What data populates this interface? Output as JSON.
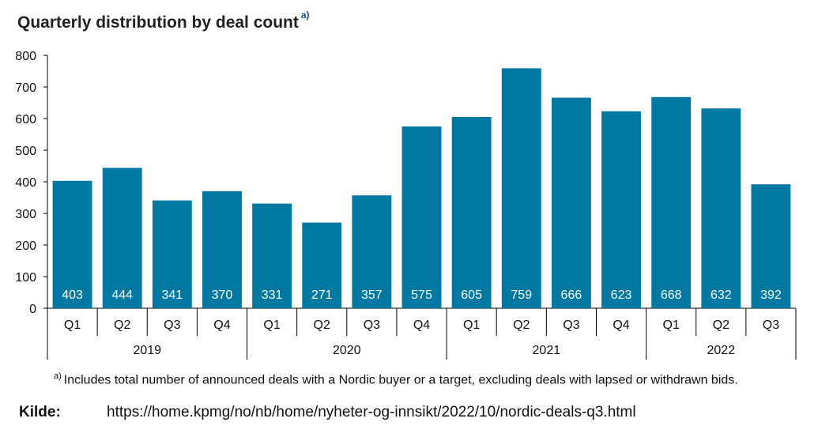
{
  "title": "Quarterly distribution by deal count",
  "title_note": "a)",
  "footnote_marker": "a)",
  "footnote_text": "Includes total number of announced deals with a Nordic buyer or a target, excluding deals with lapsed or withdrawn bids.",
  "source_label": "Kilde:",
  "source_url": "https://home.kpmg/no/nb/home/nyheter-og-innsikt/2022/10/nordic-deals-q3.html",
  "colors": {
    "bar": "#0079a2",
    "bar_label": "#ffffff",
    "axis": "#000000"
  },
  "chart_data": {
    "type": "bar",
    "title": "Quarterly distribution by deal count",
    "categories": [
      "Q1",
      "Q2",
      "Q3",
      "Q4",
      "Q1",
      "Q2",
      "Q3",
      "Q4",
      "Q1",
      "Q2",
      "Q3",
      "Q4",
      "Q1",
      "Q2",
      "Q3"
    ],
    "groups": [
      {
        "label": "2019",
        "count": 4
      },
      {
        "label": "2020",
        "count": 4
      },
      {
        "label": "2021",
        "count": 4
      },
      {
        "label": "2022",
        "count": 3
      }
    ],
    "values": [
      403,
      444,
      341,
      370,
      331,
      271,
      357,
      575,
      605,
      759,
      666,
      623,
      668,
      632,
      392
    ],
    "ylim": [
      0,
      800
    ],
    "yticks": [
      0,
      100,
      200,
      300,
      400,
      500,
      600,
      700,
      800
    ],
    "grid": false,
    "data_labels": "inside-bottom"
  }
}
